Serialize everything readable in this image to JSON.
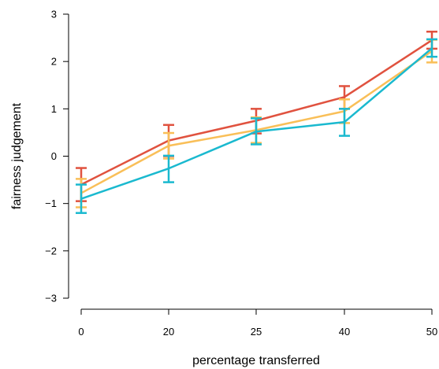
{
  "chart_data": {
    "type": "line",
    "title": "",
    "xlabel": "percentage transferred",
    "ylabel": "fairness judgement",
    "categories": [
      "0",
      "20",
      "25",
      "40",
      "50"
    ],
    "ylim": [
      -3,
      3
    ],
    "yticks": [
      -3,
      -2,
      -1,
      0,
      1,
      2,
      3
    ],
    "grid": false,
    "error_bars": true,
    "series": [
      {
        "color": "#e0523f",
        "values": [
          -0.6,
          0.33,
          0.75,
          1.25,
          2.45
        ],
        "lower": [
          -0.95,
          0.0,
          0.48,
          1.0,
          2.27
        ],
        "upper": [
          -0.25,
          0.66,
          1.0,
          1.48,
          2.63
        ]
      },
      {
        "color": "#f9bf58",
        "values": [
          -0.78,
          0.22,
          0.55,
          0.95,
          2.22
        ],
        "lower": [
          -1.08,
          -0.05,
          0.28,
          0.7,
          1.98
        ],
        "upper": [
          -0.48,
          0.49,
          0.82,
          1.2,
          2.46
        ]
      },
      {
        "color": "#1ab9cf",
        "values": [
          -0.9,
          -0.26,
          0.52,
          0.72,
          2.28
        ],
        "lower": [
          -1.2,
          -0.55,
          0.25,
          0.43,
          2.1
        ],
        "upper": [
          -0.6,
          0.01,
          0.8,
          1.0,
          2.47
        ]
      }
    ]
  }
}
